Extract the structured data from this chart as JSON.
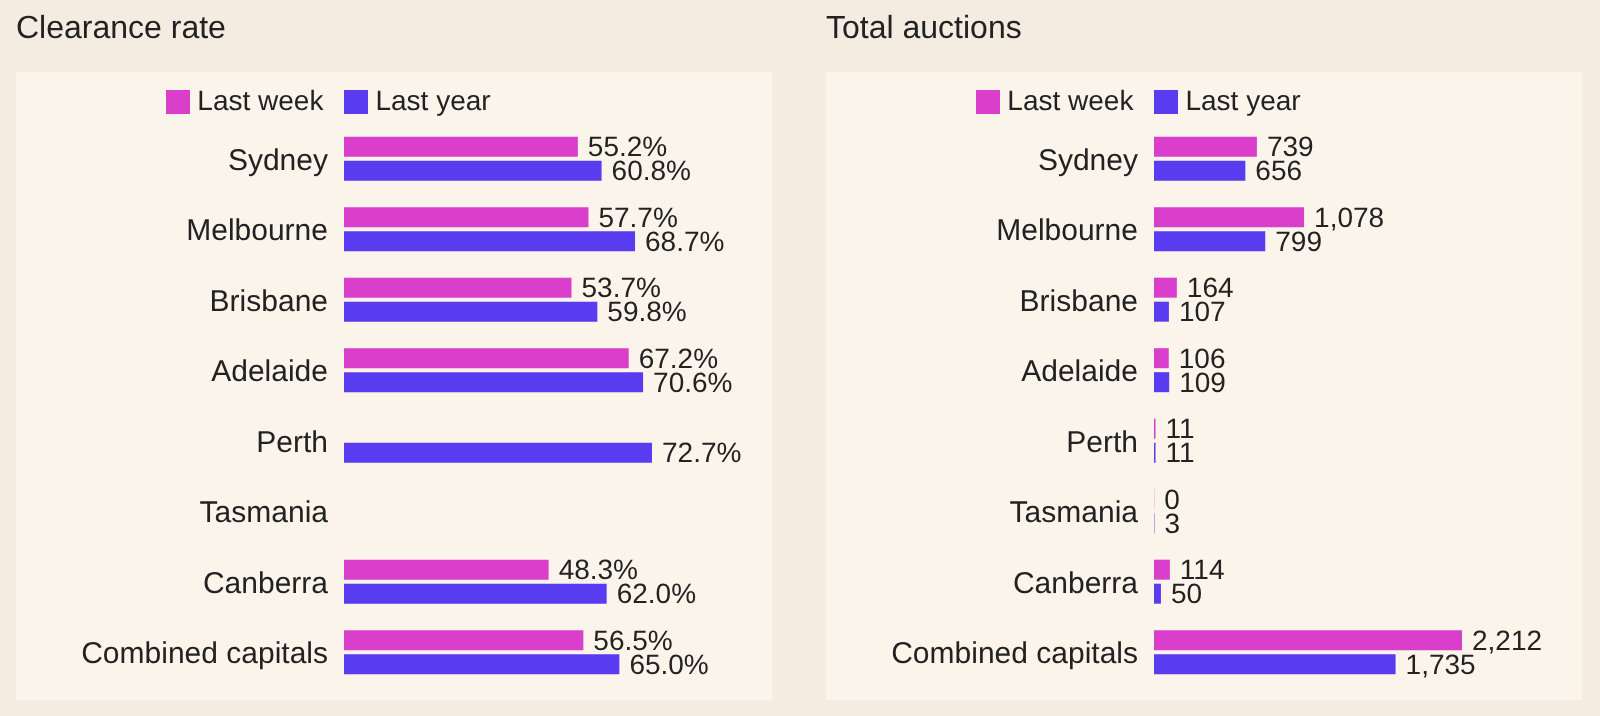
{
  "chart_data": [
    {
      "type": "bar",
      "orientation": "horizontal",
      "title": "Clearance rate",
      "legend": "top",
      "categories": [
        "Sydney",
        "Melbourne",
        "Brisbane",
        "Adelaide",
        "Perth",
        "Tasmania",
        "Canberra",
        "Combined capitals"
      ],
      "series": [
        {
          "name": "Last week",
          "color": "#d93fcb",
          "values": [
            55.2,
            57.7,
            53.7,
            67.2,
            null,
            null,
            48.3,
            56.5
          ],
          "value_labels": [
            "55.2%",
            "57.7%",
            "53.7%",
            "67.2%",
            null,
            null,
            "48.3%",
            "56.5%"
          ]
        },
        {
          "name": "Last year",
          "color": "#5a3cf0",
          "values": [
            60.8,
            68.7,
            59.8,
            70.6,
            72.7,
            null,
            62.0,
            65.0
          ],
          "value_labels": [
            "60.8%",
            "68.7%",
            "59.8%",
            "70.6%",
            "72.7%",
            null,
            "62.0%",
            "65.0%"
          ]
        }
      ]
    },
    {
      "type": "bar",
      "orientation": "horizontal",
      "title": "Total auctions",
      "legend": "top",
      "categories": [
        "Sydney",
        "Melbourne",
        "Brisbane",
        "Adelaide",
        "Perth",
        "Tasmania",
        "Canberra",
        "Combined capitals"
      ],
      "series": [
        {
          "name": "Last week",
          "color": "#d93fcb",
          "values": [
            739,
            1078,
            164,
            106,
            11,
            0,
            114,
            2212
          ],
          "value_labels": [
            "739",
            "1,078",
            "164",
            "106",
            "11",
            "0",
            "114",
            "2,212"
          ]
        },
        {
          "name": "Last year",
          "color": "#5a3cf0",
          "values": [
            656,
            799,
            107,
            109,
            11,
            3,
            50,
            1735
          ],
          "value_labels": [
            "656",
            "799",
            "107",
            "109",
            "11",
            "3",
            "50",
            "1,735"
          ]
        }
      ]
    }
  ]
}
